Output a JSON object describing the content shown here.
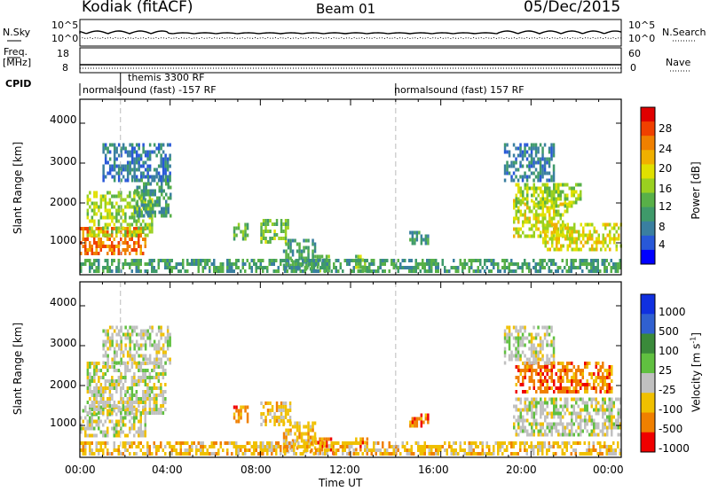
{
  "header": {
    "station": "Kodiak (fitACF)",
    "beam": "Beam 01",
    "date": "05/Dec/2015"
  },
  "strip_labels": {
    "nsky": "N.Sky",
    "nsearch": "N.Search",
    "freq_line1": "Freq.",
    "freq_line2": "[MHz]",
    "nave": "Nave",
    "cpid": "CPID",
    "nsky_ticks": [
      "10^5",
      "10^0"
    ],
    "nsearch_ticks": [
      "10^5",
      "10^0"
    ],
    "freq_ticks": [
      "18",
      "8"
    ],
    "nave_ticks": [
      "60",
      "0"
    ]
  },
  "cpid_segments": [
    {
      "label": "themis 3300 RF",
      "start_h": 1.8,
      "end_h": 14.0
    },
    {
      "label": "normalsound (fast) -157 RF",
      "start_h": 0.0,
      "end_h": 14.0
    },
    {
      "label": "normalsound (fast) 157 RF",
      "start_h": 14.0,
      "end_h": 24.0
    }
  ],
  "chart_data": [
    {
      "type": "heatmap",
      "name": "power-panel",
      "ylabel": "Slant Range [km]",
      "xlabel": "",
      "ylim": [
        200,
        4600
      ],
      "xlim": [
        0,
        24
      ],
      "y_ticks": [
        "4000",
        "3000",
        "2000",
        "1000"
      ],
      "colorbar": {
        "label": "Power [dB]",
        "range": [
          0,
          32
        ],
        "ticks": [
          "28",
          "24",
          "20",
          "16",
          "12",
          "8",
          "4"
        ],
        "colors": [
          "#0000ff",
          "#2858d8",
          "#3a7fa0",
          "#3f9a6a",
          "#58b048",
          "#9ad020",
          "#e0e000",
          "#f0b000",
          "#f08000",
          "#f04000",
          "#e00000"
        ]
      },
      "echo_regions": [
        {
          "t0": 0.0,
          "t1": 2.9,
          "r0": 700,
          "r1": 1400,
          "level": 26
        },
        {
          "t0": 0.3,
          "t1": 3.2,
          "r0": 1200,
          "r1": 2300,
          "level": 16
        },
        {
          "t0": 2.4,
          "t1": 4.0,
          "r0": 1700,
          "r1": 2700,
          "level": 9
        },
        {
          "t0": 1.0,
          "t1": 4.0,
          "r0": 2600,
          "r1": 3500,
          "level": 6
        },
        {
          "t0": 6.8,
          "t1": 7.4,
          "r0": 1100,
          "r1": 1500,
          "level": 12
        },
        {
          "t0": 8.0,
          "t1": 9.2,
          "r0": 1000,
          "r1": 1600,
          "level": 14
        },
        {
          "t0": 9.0,
          "t1": 10.4,
          "r0": 300,
          "r1": 1100,
          "level": 10
        },
        {
          "t0": 10.3,
          "t1": 11.0,
          "r0": 300,
          "r1": 700,
          "level": 12
        },
        {
          "t0": 12.2,
          "t1": 12.6,
          "r0": 300,
          "r1": 700,
          "level": 14
        },
        {
          "t0": 14.6,
          "t1": 15.4,
          "r0": 950,
          "r1": 1300,
          "level": 9
        },
        {
          "t0": 19.2,
          "t1": 21.6,
          "r0": 1200,
          "r1": 2100,
          "level": 18
        },
        {
          "t0": 19.3,
          "t1": 22.2,
          "r0": 1900,
          "r1": 2500,
          "level": 16
        },
        {
          "t0": 20.5,
          "t1": 24.0,
          "r0": 800,
          "r1": 1500,
          "level": 19
        },
        {
          "t0": 18.8,
          "t1": 21.0,
          "r0": 2600,
          "r1": 3500,
          "level": 7
        },
        {
          "t0": 0.0,
          "t1": 24.0,
          "r0": 250,
          "r1": 600,
          "level": 10
        }
      ]
    },
    {
      "type": "heatmap",
      "name": "velocity-panel",
      "ylabel": "Slant Range [km]",
      "xlabel": "Time UT",
      "ylim": [
        200,
        4600
      ],
      "xlim": [
        0,
        24
      ],
      "y_ticks": [
        "4000",
        "3000",
        "2000",
        "1000"
      ],
      "x_ticks": [
        "00:00",
        "04:00",
        "08:00",
        "12:00",
        "16:00",
        "20:00",
        "00:00"
      ],
      "colorbar": {
        "label": "Velocity [m s",
        "label_sup": "-1",
        "label_end": "]",
        "ticks": [
          "1000",
          "500",
          "100",
          "25",
          "-25",
          "-100",
          "-500",
          "-1000"
        ],
        "colors": [
          "#1030e0",
          "#3060d0",
          "#3a8a3a",
          "#60c040",
          "#c0c0c0",
          "#f0c000",
          "#f08000",
          "#f00000"
        ]
      },
      "echo_regions": [
        {
          "t0": 0.0,
          "t1": 2.9,
          "r0": 700,
          "r1": 1500,
          "class": 4
        },
        {
          "t0": 0.3,
          "t1": 3.8,
          "r0": 1300,
          "r1": 2600,
          "class": 4
        },
        {
          "t0": 1.0,
          "t1": 4.0,
          "r0": 2600,
          "r1": 3500,
          "class": 4
        },
        {
          "t0": 6.8,
          "t1": 7.4,
          "r0": 1100,
          "r1": 1500,
          "class": 6
        },
        {
          "t0": 8.0,
          "t1": 9.3,
          "r0": 1000,
          "r1": 1600,
          "class": 5
        },
        {
          "t0": 9.0,
          "t1": 10.4,
          "r0": 300,
          "r1": 1100,
          "class": 5
        },
        {
          "t0": 10.4,
          "t1": 11.2,
          "r0": 300,
          "r1": 700,
          "class": 6
        },
        {
          "t0": 12.2,
          "t1": 12.7,
          "r0": 400,
          "r1": 700,
          "class": 6
        },
        {
          "t0": 14.6,
          "t1": 15.4,
          "r0": 950,
          "r1": 1300,
          "class": 6
        },
        {
          "t0": 19.2,
          "t1": 24.0,
          "r0": 800,
          "r1": 1700,
          "class": 4
        },
        {
          "t0": 19.3,
          "t1": 23.6,
          "r0": 1800,
          "r1": 2600,
          "class": 6
        },
        {
          "t0": 18.8,
          "t1": 21.0,
          "r0": 2600,
          "r1": 3500,
          "class": 4
        },
        {
          "t0": 0.0,
          "t1": 24.0,
          "r0": 250,
          "r1": 600,
          "class": 5
        }
      ]
    }
  ]
}
